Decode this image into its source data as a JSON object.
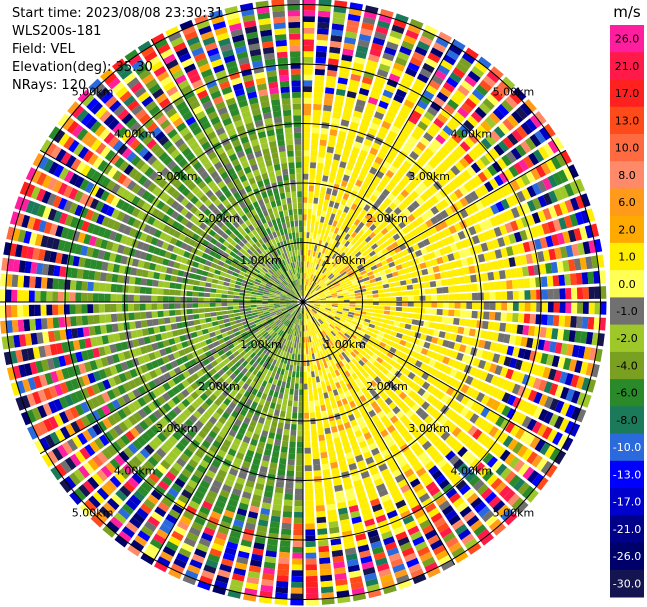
{
  "header": {
    "start_time": "Start time: 2023/08/08 23:30:31",
    "instrument": "WLS200s-181",
    "field": "Field: VEL",
    "elevation": "Elevation(deg): 35.30",
    "nrays": "NRays: 120"
  },
  "chart_data": {
    "type": "heatmap",
    "subtype": "polar-ppi",
    "nrays": 120,
    "range_rings_km": [
      1.0,
      2.0,
      3.0,
      4.0,
      5.0
    ],
    "range_ring_labels": [
      "1.00km",
      "2.00km",
      "3.00km",
      "4.00km",
      "5.00km"
    ],
    "max_range_km": 5.1,
    "colorbar": {
      "unit": "m/s",
      "tick_labels": [
        "26.0",
        "21.0",
        "17.0",
        "13.0",
        "10.0",
        "8.0",
        "6.0",
        "2.0",
        "1.0",
        "0.0",
        "-1.0",
        "-2.0",
        "-4.0",
        "-6.0",
        "-8.0",
        "-10.0",
        "-13.0",
        "-17.0",
        "-21.0",
        "-26.0",
        "-30.0"
      ],
      "colors": [
        "#ff1f9e",
        "#ff1a4a",
        "#ff2020",
        "#ff4a1a",
        "#ff6a40",
        "#ff8a6a",
        "#ff9a1a",
        "#ffaa00",
        "#ffee00",
        "#ffff55",
        "#707070",
        "#9ec82a",
        "#7aa022",
        "#2a8a2a",
        "#1a7a5a",
        "#2a6adc",
        "#0000ff",
        "#0000cc",
        "#000088",
        "#00006a",
        "#141450"
      ]
    }
  }
}
